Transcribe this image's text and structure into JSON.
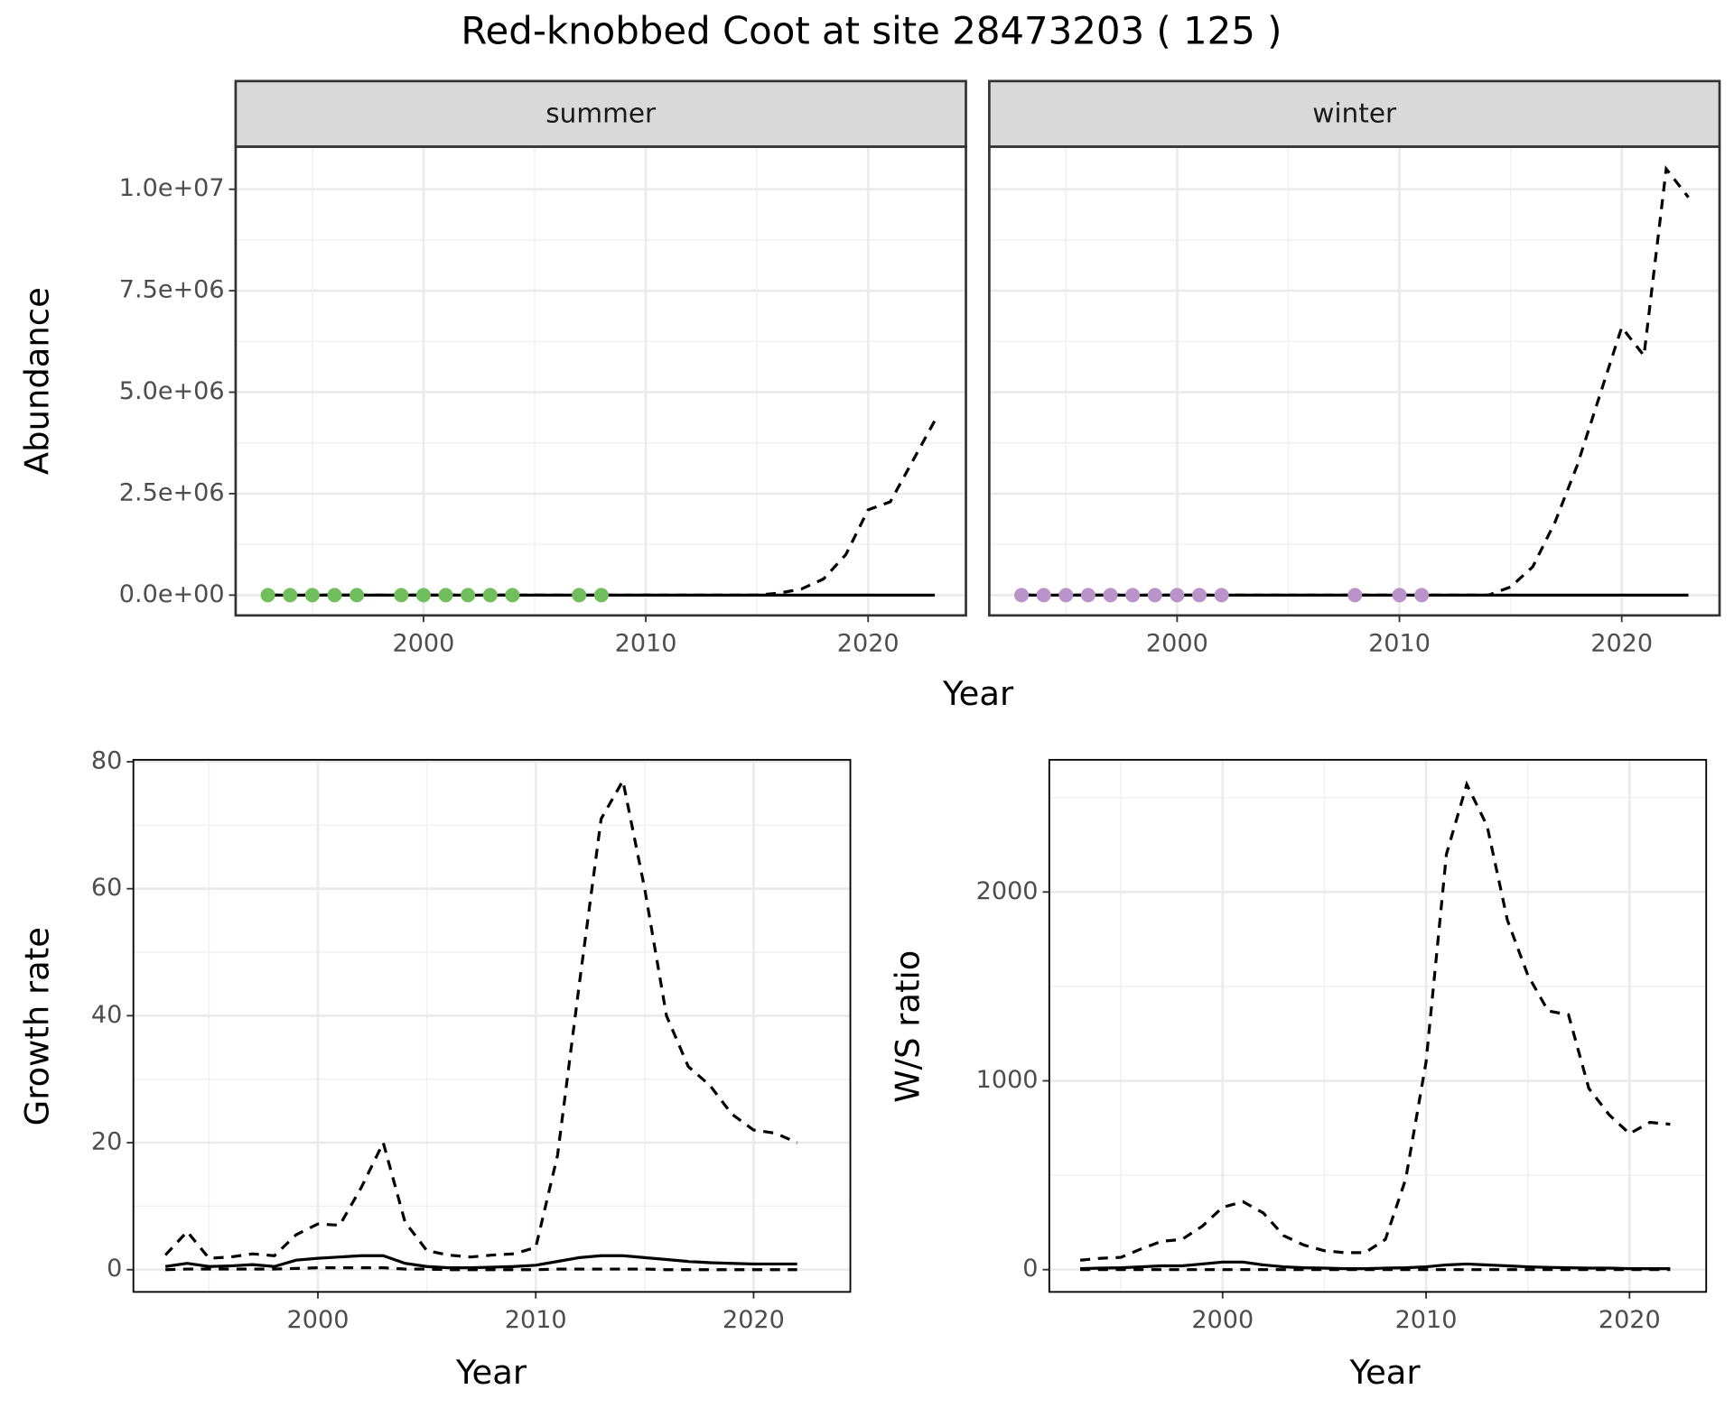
{
  "chart_data": [
    {
      "type": "line",
      "title": "Red-knobbed Coot at site 28473203 ( 125 )",
      "xlabel": "Year",
      "ylabel": "Abundance",
      "xlim": [
        1991.55,
        2024.4
      ],
      "xticks": [
        2000,
        2010,
        2020
      ],
      "ylim": [
        -500000,
        11050000
      ],
      "yticks": [
        {
          "value": 0,
          "label": "0.0e+00"
        },
        {
          "value": 2500000,
          "label": "2.5e+06"
        },
        {
          "value": 5000000,
          "label": "5.0e+06"
        },
        {
          "value": 7500000,
          "label": "7.5e+06"
        },
        {
          "value": 10000000,
          "label": "1.0e+07"
        }
      ],
      "grid": true,
      "facets": [
        {
          "label": "summer",
          "x": [
            1993,
            1994,
            1995,
            1996,
            1997,
            1998,
            1999,
            2000,
            2001,
            2002,
            2003,
            2004,
            2005,
            2006,
            2007,
            2008,
            2009,
            2010,
            2011,
            2012,
            2013,
            2014,
            2015,
            2016,
            2017,
            2018,
            2019,
            2020,
            2021,
            2022,
            2023
          ],
          "series": [
            {
              "style": "dashed",
              "color": "#000000",
              "values": [
                0,
                0,
                0,
                0,
                0,
                0,
                0,
                0,
                0,
                0,
                0,
                0,
                0,
                0,
                0,
                0,
                0,
                0,
                0,
                0,
                0,
                0,
                0,
                50000,
                150000,
                400000,
                1000000,
                2100000,
                2300000,
                3300000,
                4300000
              ]
            },
            {
              "style": "solid",
              "color": "#000000",
              "values": [
                0,
                0,
                0,
                0,
                0,
                0,
                0,
                0,
                0,
                0,
                0,
                0,
                0,
                0,
                0,
                0,
                0,
                0,
                0,
                0,
                0,
                0,
                0,
                0,
                0,
                0,
                0,
                0,
                0,
                0,
                0
              ]
            }
          ],
          "points": {
            "color": "#71bf5c",
            "x": [
              1993,
              1994,
              1995,
              1996,
              1997,
              1999,
              2000,
              2001,
              2002,
              2003,
              2004,
              2007,
              2008
            ],
            "values": [
              0,
              0,
              0,
              0,
              0,
              0,
              0,
              0,
              0,
              0,
              0,
              0,
              0
            ]
          }
        },
        {
          "label": "winter",
          "x": [
            1993,
            1994,
            1995,
            1996,
            1997,
            1998,
            1999,
            2000,
            2001,
            2002,
            2003,
            2004,
            2005,
            2006,
            2007,
            2008,
            2009,
            2010,
            2011,
            2012,
            2013,
            2014,
            2015,
            2016,
            2017,
            2018,
            2019,
            2020,
            2021,
            2022,
            2023
          ],
          "series": [
            {
              "style": "dashed",
              "color": "#000000",
              "values": [
                0,
                0,
                0,
                0,
                0,
                0,
                0,
                0,
                0,
                0,
                0,
                0,
                0,
                0,
                0,
                0,
                0,
                0,
                0,
                0,
                0,
                0,
                200000,
                700000,
                1800000,
                3200000,
                4900000,
                6600000,
                5900000,
                10500000,
                9800000
              ]
            },
            {
              "style": "solid",
              "color": "#000000",
              "values": [
                0,
                0,
                0,
                0,
                0,
                0,
                0,
                0,
                0,
                0,
                0,
                0,
                0,
                0,
                0,
                0,
                0,
                0,
                0,
                0,
                0,
                0,
                0,
                0,
                0,
                0,
                0,
                0,
                0,
                0,
                0
              ]
            }
          ],
          "points": {
            "color": "#b993c9",
            "x": [
              1993,
              1994,
              1995,
              1996,
              1997,
              1998,
              1999,
              2000,
              2001,
              2002,
              2008,
              2010,
              2011
            ],
            "values": [
              0,
              0,
              0,
              0,
              0,
              0,
              0,
              0,
              0,
              0,
              0,
              0,
              0
            ]
          }
        }
      ]
    },
    {
      "type": "line",
      "xlabel": "Year",
      "ylabel": "Growth rate",
      "xlim": [
        1991.53,
        2024.44
      ],
      "xticks": [
        2000,
        2010,
        2020
      ],
      "ylim": [
        -3.5,
        80.3
      ],
      "yticks": [
        0,
        20,
        40,
        60,
        80
      ],
      "grid": true,
      "x": [
        1993,
        1994,
        1995,
        1996,
        1997,
        1998,
        1999,
        2000,
        2001,
        2002,
        2003,
        2004,
        2005,
        2006,
        2007,
        2008,
        2009,
        2010,
        2011,
        2012,
        2013,
        2014,
        2015,
        2016,
        2017,
        2018,
        2019,
        2020,
        2021,
        2022
      ],
      "series": [
        {
          "style": "dashed",
          "color": "#000000",
          "values": [
            2.3,
            6,
            1.8,
            2,
            2.5,
            2.2,
            5.5,
            7.2,
            7,
            13,
            20,
            7.5,
            3,
            2.3,
            2,
            2.3,
            2.5,
            3.5,
            18,
            45,
            71,
            77,
            60,
            40,
            32,
            29,
            24.5,
            22,
            21.5,
            20
          ]
        },
        {
          "style": "solid",
          "color": "#000000",
          "values": [
            0.5,
            1,
            0.5,
            0.6,
            0.8,
            0.5,
            1.5,
            1.8,
            2,
            2.2,
            2.2,
            1,
            0.5,
            0.3,
            0.3,
            0.4,
            0.5,
            0.7,
            1.3,
            1.9,
            2.2,
            2.2,
            1.9,
            1.6,
            1.3,
            1.1,
            1,
            0.9,
            0.9,
            0.9
          ]
        },
        {
          "style": "dashed",
          "color": "#000000",
          "values": [
            0,
            0.1,
            0.1,
            0.1,
            0.1,
            0.1,
            0.2,
            0.3,
            0.3,
            0.3,
            0.3,
            0.1,
            0.1,
            0,
            0,
            0,
            0,
            0,
            0.1,
            0.1,
            0.1,
            0.1,
            0.1,
            0,
            0,
            0,
            0,
            0,
            0,
            0
          ]
        }
      ]
    },
    {
      "type": "line",
      "xlabel": "Year",
      "ylabel": "W/S ratio",
      "xlim": [
        1991.48,
        2023.77
      ],
      "xticks": [
        2000,
        2010,
        2020
      ],
      "ylim": [
        -118,
        2700
      ],
      "yticks": [
        0,
        1000,
        2000
      ],
      "grid": true,
      "x": [
        1993,
        1994,
        1995,
        1996,
        1997,
        1998,
        1999,
        2000,
        2001,
        2002,
        2003,
        2004,
        2005,
        2006,
        2007,
        2008,
        2009,
        2010,
        2011,
        2012,
        2013,
        2014,
        2015,
        2016,
        2017,
        2018,
        2019,
        2020,
        2021,
        2022
      ],
      "series": [
        {
          "style": "dashed",
          "color": "#000000",
          "values": [
            50,
            60,
            65,
            110,
            150,
            160,
            230,
            330,
            360,
            300,
            180,
            130,
            100,
            90,
            90,
            160,
            480,
            1100,
            2200,
            2570,
            2350,
            1850,
            1560,
            1370,
            1350,
            960,
            820,
            720,
            780,
            770
          ]
        },
        {
          "style": "solid",
          "color": "#000000",
          "values": [
            5,
            8,
            10,
            15,
            20,
            20,
            30,
            40,
            40,
            25,
            15,
            10,
            8,
            5,
            5,
            8,
            10,
            15,
            25,
            30,
            25,
            20,
            15,
            12,
            10,
            8,
            8,
            5,
            5,
            5
          ]
        },
        {
          "style": "dashed",
          "color": "#000000",
          "values": [
            0,
            0,
            0,
            0,
            0,
            0,
            0,
            0,
            0,
            0,
            0,
            0,
            0,
            0,
            0,
            0,
            0,
            0,
            0,
            0,
            0,
            0,
            0,
            0,
            0,
            0,
            0,
            0,
            0,
            0
          ]
        }
      ]
    }
  ]
}
